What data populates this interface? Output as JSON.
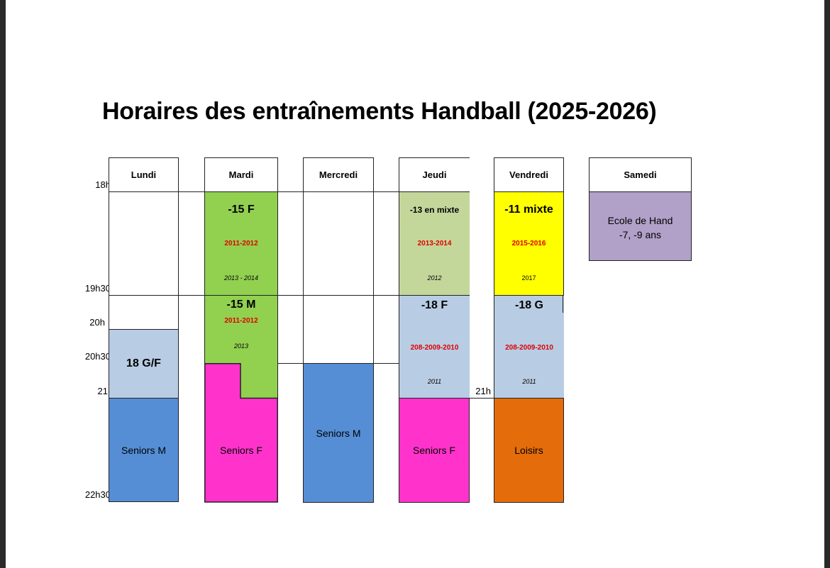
{
  "title": "Horaires des entraînements Handball (2025-2026)",
  "times": {
    "t18h": "18h",
    "t19h30": "19h30",
    "t20h": "20h",
    "t20h30": "20h30",
    "t21": "21",
    "t21h": "21h",
    "t22h30": "22h30"
  },
  "days": {
    "lundi": "Lundi",
    "mardi": "Mardi",
    "mercredi": "Mercredi",
    "jeudi": "Jeudi",
    "vendredi": "Vendredi",
    "samedi": "Samedi"
  },
  "slots": {
    "mardi_15f": {
      "label": "-15 F",
      "years": "2011-2012",
      "extra": "2013 - 2014"
    },
    "mardi_15m": {
      "label": "-15 M",
      "years": "2011-2012",
      "extra": "2013"
    },
    "jeudi_13": {
      "label": "-13  en mixte",
      "years": "2013-2014",
      "extra": "2012"
    },
    "jeudi_18f": {
      "label": "-18 F",
      "years": "208-2009-2010",
      "extra": "2011"
    },
    "vendredi_11": {
      "label": "-11 mixte",
      "years": "2015-2016",
      "extra": "2017"
    },
    "vendredi_18g": {
      "label": "-18  G",
      "years": "208-2009-2010",
      "extra": "2011"
    },
    "lundi_18gf": {
      "label": "18 G/F"
    },
    "lundi_seniors": {
      "label": "Seniors M"
    },
    "mardi_seniors": {
      "label": "Seniors F"
    },
    "mercredi_seniors": {
      "label": "Seniors M"
    },
    "jeudi_seniors": {
      "label": "Seniors F"
    },
    "vendredi_loisirs": {
      "label": "Loisirs"
    },
    "samedi_ecole": {
      "line1": "Ecole de Hand",
      "line2": "-7, -9 ans"
    }
  },
  "colors": {
    "green": "#92d050",
    "light_green": "#c4d79b",
    "light_blue": "#b8cce4",
    "blue": "#558ed5",
    "pink": "#ff33cc",
    "yellow": "#ffff00",
    "orange": "#e46c0a",
    "lavender": "#b1a0c7",
    "red_text": "#e00000"
  }
}
